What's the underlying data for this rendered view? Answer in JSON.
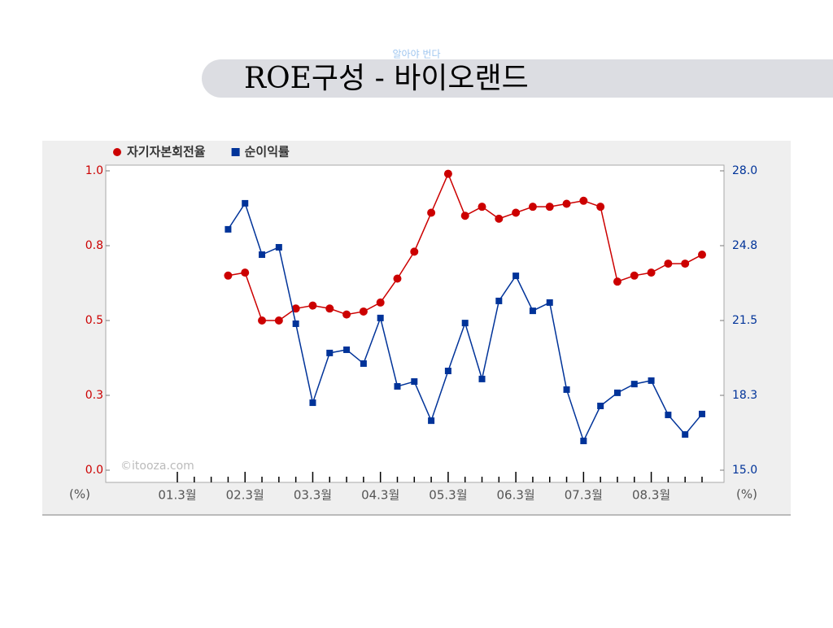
{
  "slogan": "알아야 번다",
  "chart_data": {
    "type": "line",
    "title": "ROE구성 - 바이오랜드",
    "categories": [
      "01.3월",
      null,
      null,
      null,
      "02.3월",
      null,
      null,
      null,
      "03.3월",
      null,
      null,
      null,
      "04.3월",
      null,
      null,
      null,
      "05.3월",
      null,
      null,
      null,
      "06.3월",
      null,
      null,
      null,
      "07.3월",
      null,
      null,
      null,
      "08.3월",
      null,
      null,
      null
    ],
    "series": [
      {
        "name": "자기자본회전율",
        "color": "#cc0000",
        "marker": "circle",
        "values": [
          null,
          null,
          null,
          0.65,
          0.66,
          0.5,
          0.5,
          0.54,
          0.55,
          0.54,
          0.52,
          0.53,
          0.56,
          0.64,
          0.73,
          0.86,
          0.99,
          0.85,
          0.88,
          0.84,
          0.86,
          0.88,
          0.88,
          0.89,
          0.9,
          0.88,
          0.63,
          0.65,
          0.66,
          0.69,
          0.69,
          0.72
        ]
      },
      {
        "name": "순이익률",
        "color": "#003399",
        "marker": "square",
        "axis": "y2",
        "values": [
          null,
          null,
          null,
          25.46,
          26.59,
          24.36,
          24.68,
          21.36,
          17.93,
          20.09,
          20.23,
          19.63,
          21.61,
          18.64,
          18.85,
          17.15,
          19.31,
          21.39,
          18.96,
          22.35,
          23.44,
          21.92,
          22.28,
          18.5,
          16.27,
          17.79,
          18.36,
          18.74,
          18.89,
          17.4,
          16.55,
          17.44
        ]
      }
    ],
    "ylim": [
      0,
      1
    ],
    "yticks": [
      {
        "value": 0,
        "label": "0.0"
      },
      {
        "value": 0.25,
        "label": "0.3"
      },
      0.5,
      {
        "value": 0.75,
        "label": "0.8"
      },
      {
        "value": 1,
        "label": "1.0"
      }
    ],
    "y2lim": [
      15,
      28
    ],
    "y2ticks": [
      {
        "value": 15,
        "label": "15.0"
      },
      {
        "value": 18.25,
        "label": "18.3"
      },
      21.5,
      {
        "value": 24.75,
        "label": "24.8"
      },
      {
        "value": 28,
        "label": "28.0"
      }
    ],
    "y_unit": "(%)",
    "y2_unit": "(%)",
    "watermark": "©itooza.com",
    "legend": "top-left",
    "grid": false
  }
}
